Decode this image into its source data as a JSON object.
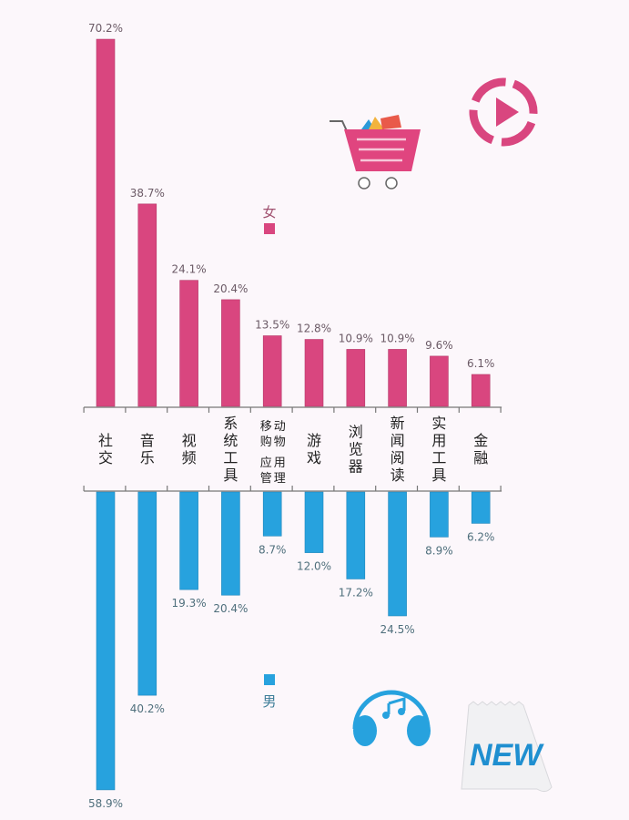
{
  "chart_data": {
    "type": "bar",
    "orientation": "diverging-vertical",
    "categories": [
      [
        "社交"
      ],
      [
        "音乐"
      ],
      [
        "视频"
      ],
      [
        "系统工具"
      ],
      [
        "移动购物",
        "应用管理"
      ],
      [
        "游戏"
      ],
      [
        "浏览器"
      ],
      [
        "新闻阅读"
      ],
      [
        "实用工具"
      ],
      [
        "金融"
      ]
    ],
    "series": [
      {
        "name": "女",
        "color": "#d9467f",
        "direction": "up",
        "values": [
          70.2,
          38.7,
          24.1,
          20.4,
          13.5,
          12.8,
          10.9,
          10.9,
          9.6,
          6.1
        ],
        "labels": [
          "70.2%",
          "38.7%",
          "24.1%",
          "20.4%",
          "13.5%",
          "12.8%",
          "10.9%",
          "10.9%",
          "9.6%",
          "6.1%"
        ]
      },
      {
        "name": "男",
        "color": "#27a2de",
        "direction": "down",
        "values": [
          58.9,
          40.2,
          19.3,
          20.4,
          8.7,
          12.0,
          17.2,
          24.5,
          8.9,
          6.2
        ],
        "labels": [
          "58.9%",
          "40.2%",
          "19.3%",
          "20.4%",
          "8.7%",
          "12.0%",
          "17.2%",
          "24.5%",
          "8.9%",
          "6.2%"
        ]
      }
    ],
    "unit": "%",
    "ylim": [
      0,
      75
    ],
    "grid": false,
    "legend": [
      "女",
      "男"
    ]
  },
  "decorations": {
    "cart_icon": "shopping-cart-icon",
    "play_icon": "play-circle-icon",
    "headphones_icon": "headphones-icon",
    "new_badge_text": "NEW"
  }
}
